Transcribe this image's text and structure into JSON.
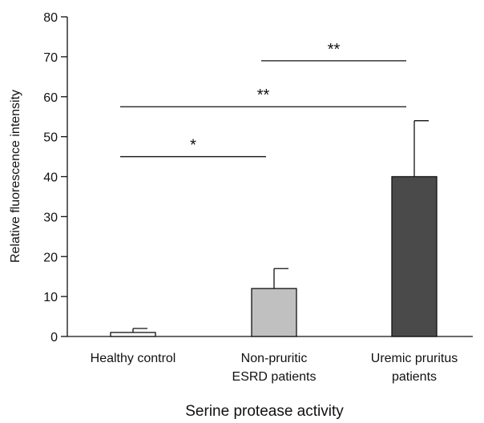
{
  "chart_data": {
    "type": "bar",
    "categories": [
      [
        "Healthy control"
      ],
      [
        "Non-pruritic",
        "ESRD patients"
      ],
      [
        "Uremic pruritus",
        "patients"
      ]
    ],
    "values": [
      1,
      12,
      40
    ],
    "errors": [
      1,
      5,
      14
    ],
    "bar_colors": [
      "#ffffff",
      "#c0c0c0",
      "#4a4a4a"
    ],
    "xlabel": "Serine protease activity",
    "ylabel": "Relative fluorescence intensity",
    "ylim": [
      0,
      80
    ],
    "yticks": [
      0,
      10,
      20,
      30,
      40,
      50,
      60,
      70,
      80
    ],
    "grid": false,
    "annotations": [
      {
        "label": "*",
        "from": 0,
        "to": 1,
        "y": 45
      },
      {
        "label": "**",
        "from": 0,
        "to": 2,
        "y": 57.5
      },
      {
        "label": "**",
        "from": 1,
        "to": 2,
        "y": 69
      }
    ]
  }
}
